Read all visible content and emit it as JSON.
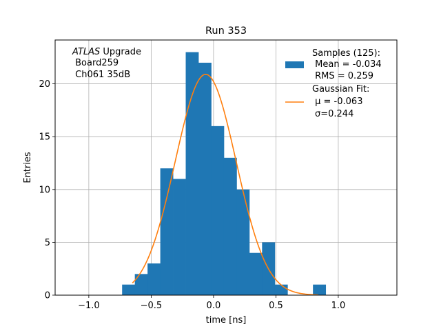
{
  "chart_data": {
    "type": "bar",
    "title": "Run 353",
    "xlabel": "time [ns]",
    "ylabel": "Entries",
    "xlim": [
      -1.27,
      1.47
    ],
    "ylim": [
      0,
      24.15
    ],
    "x_ticks": [
      -1.0,
      -0.5,
      0.0,
      0.5,
      1.0
    ],
    "x_tick_labels": [
      "−1.0",
      "−0.5",
      "0.0",
      "0.5",
      "1.0"
    ],
    "y_ticks": [
      0,
      5,
      10,
      15,
      20
    ],
    "y_tick_labels": [
      "0",
      "5",
      "10",
      "15",
      "20"
    ],
    "grid": true,
    "legend_position": "top-right",
    "annotation": {
      "italic": "ATLAS",
      "rest": " Upgrade",
      "lines": [
        " Board259",
        " Ch061 35dB"
      ]
    },
    "histogram": {
      "name_lines": [
        "Samples (125):",
        " Mean = -0.034",
        " RMS = 0.259"
      ],
      "color": "#1f77b4",
      "bin_edges": [
        -0.733,
        -0.631,
        -0.529,
        -0.427,
        -0.325,
        -0.223,
        -0.121,
        -0.019,
        0.083,
        0.185,
        0.287,
        0.389,
        0.491,
        0.593,
        0.695,
        0.797,
        0.899,
        1.001
      ],
      "counts": [
        1,
        2,
        3,
        12,
        11,
        23,
        22,
        16,
        13,
        10,
        4,
        5,
        1,
        0,
        0,
        1,
        0
      ]
    },
    "fit": {
      "type": "gaussian",
      "name_lines": [
        "Gaussian Fit:",
        " μ = -0.063",
        "σ=0.244"
      ],
      "color": "#ff7f0e",
      "mu": -0.063,
      "sigma": 0.244,
      "amplitude": 20.9,
      "x_range": [
        -0.65,
        0.84
      ]
    }
  }
}
